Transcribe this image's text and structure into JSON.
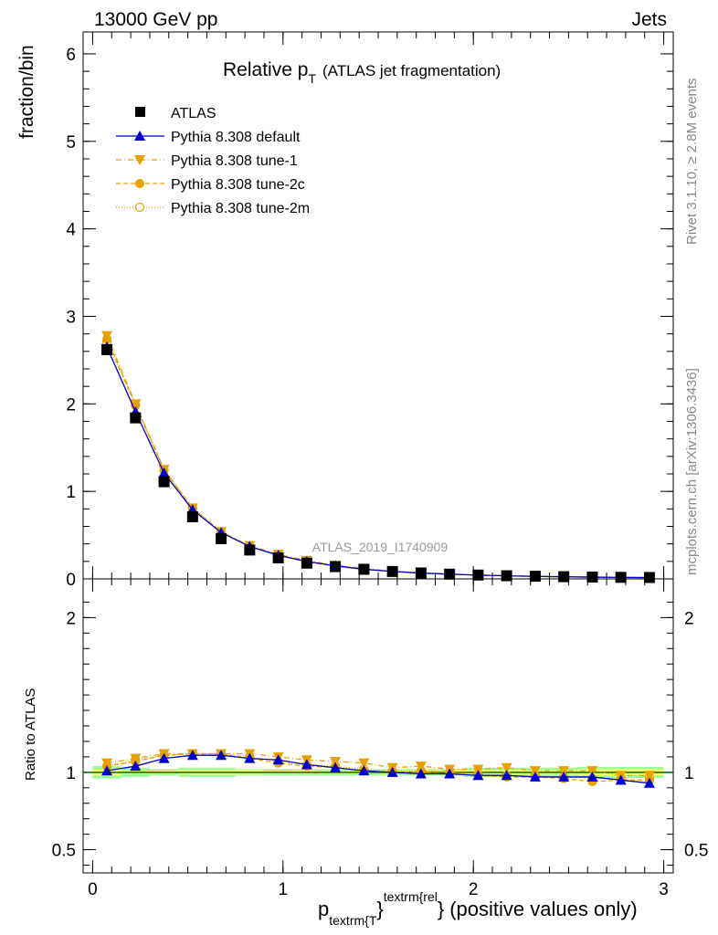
{
  "header": {
    "left": "13000 GeV pp",
    "right": "Jets"
  },
  "title": {
    "main": "Relative p",
    "sub": "T",
    "rest": "(ATLAS jet fragmentation)"
  },
  "side_labels": {
    "rivet": "Rivet 3.1.10, ≥ 2.8M events",
    "mcplots": "mcplots.cern.ch [arXiv:1306.3436]"
  },
  "watermark": "ATLAS_2019_I1740909",
  "y_label_top": "fraction/bin",
  "y_label_bottom": "Ratio to ATLAS",
  "x_label": {
    "p": "p",
    "sub": "textrm{T",
    "brace1": "}",
    "sup": "textrm{rel",
    "brace2": "}",
    "rest": "(positive values only)"
  },
  "legend": [
    {
      "label": "ATLAS"
    },
    {
      "label": "Pythia 8.308 default"
    },
    {
      "label": "Pythia 8.308 tune-1"
    },
    {
      "label": "Pythia 8.308 tune-2c"
    },
    {
      "label": "Pythia 8.308 tune-2m"
    }
  ],
  "colors": {
    "data": "#000000",
    "default": "#0000cc",
    "tunes": "#e8a000",
    "band_inner": "#ffff66",
    "band_outer": "#99ff99",
    "ref_line": "#006600"
  },
  "chart_data": [
    {
      "type": "line",
      "panel": "main",
      "xlim": [
        -0.05,
        3.05
      ],
      "ylim": [
        0,
        6.25
      ],
      "xticks": [
        "0",
        "1",
        "2",
        "3"
      ],
      "yticks": [
        "0",
        "1",
        "2",
        "3",
        "4",
        "5",
        "6"
      ],
      "x": [
        0.075,
        0.225,
        0.375,
        0.525,
        0.675,
        0.825,
        0.975,
        1.125,
        1.275,
        1.425,
        1.575,
        1.725,
        1.875,
        2.025,
        2.175,
        2.325,
        2.475,
        2.625,
        2.775,
        2.925
      ],
      "series": [
        {
          "name": "ATLAS",
          "marker": "square",
          "values": [
            2.62,
            1.84,
            1.11,
            0.71,
            0.46,
            0.33,
            0.24,
            0.18,
            0.14,
            0.11,
            0.085,
            0.068,
            0.054,
            0.044,
            0.036,
            0.03,
            0.025,
            0.021,
            0.018,
            0.016
          ]
        },
        {
          "name": "Pythia 8.308 default",
          "marker": "triangle-up",
          "values": [
            2.65,
            1.91,
            1.21,
            0.79,
            0.53,
            0.37,
            0.27,
            0.2,
            0.15,
            0.11,
            0.085,
            0.066,
            0.054,
            0.043,
            0.035,
            0.029,
            0.024,
            0.02,
            0.017,
            0.015
          ]
        },
        {
          "name": "Pythia 8.308 tune-1",
          "marker": "triangle-down",
          "values": [
            2.78,
            2.0,
            1.25,
            0.81,
            0.54,
            0.38,
            0.28,
            0.21,
            0.155,
            0.12,
            0.087,
            0.069,
            0.056,
            0.045,
            0.037,
            0.03,
            0.025,
            0.021,
            0.018,
            0.016
          ]
        },
        {
          "name": "Pythia 8.308 tune-2c",
          "marker": "circle",
          "values": [
            2.74,
            1.99,
            1.25,
            0.81,
            0.54,
            0.37,
            0.27,
            0.19,
            0.145,
            0.11,
            0.085,
            0.068,
            0.053,
            0.043,
            0.035,
            0.029,
            0.024,
            0.02,
            0.017,
            0.015
          ]
        },
        {
          "name": "Pythia 8.308 tune-2m",
          "marker": "open-circle",
          "values": [
            2.71,
            1.98,
            1.24,
            0.8,
            0.53,
            0.37,
            0.27,
            0.19,
            0.145,
            0.11,
            0.086,
            0.068,
            0.054,
            0.044,
            0.036,
            0.029,
            0.024,
            0.02,
            0.017,
            0.015
          ]
        }
      ]
    },
    {
      "type": "line",
      "panel": "ratio",
      "xlim": [
        -0.05,
        3.05
      ],
      "ylim": [
        0.35,
        2.25
      ],
      "xticks": [
        "0",
        "1",
        "2",
        "3"
      ],
      "yticks": [
        "0.5",
        "1",
        "2"
      ],
      "x": [
        0.075,
        0.225,
        0.375,
        0.525,
        0.675,
        0.825,
        0.975,
        1.125,
        1.275,
        1.425,
        1.575,
        1.725,
        1.875,
        2.025,
        2.175,
        2.325,
        2.475,
        2.625,
        2.775,
        2.925
      ],
      "band": {
        "inner": [
          0.02,
          0.01,
          0.01,
          0.015,
          0.015,
          0.015,
          0.01,
          0.01,
          0.01,
          0.01,
          0.01,
          0.01,
          0.01,
          0.015,
          0.015,
          0.015,
          0.015,
          0.02,
          0.02,
          0.02
        ],
        "outer": [
          0.04,
          0.03,
          0.02,
          0.03,
          0.03,
          0.02,
          0.02,
          0.02,
          0.02,
          0.02,
          0.02,
          0.02,
          0.02,
          0.03,
          0.03,
          0.03,
          0.03,
          0.035,
          0.035,
          0.035
        ]
      },
      "series": [
        {
          "name": "Pythia 8.308 default",
          "marker": "triangle-up",
          "values": [
            1.01,
            1.04,
            1.09,
            1.11,
            1.11,
            1.09,
            1.08,
            1.05,
            1.03,
            1.01,
            1.0,
            0.99,
            0.99,
            0.98,
            0.98,
            0.97,
            0.97,
            0.97,
            0.95,
            0.93
          ]
        },
        {
          "name": "Pythia 8.308 tune-1",
          "marker": "triangle-down",
          "values": [
            1.06,
            1.09,
            1.12,
            1.12,
            1.12,
            1.12,
            1.1,
            1.08,
            1.07,
            1.06,
            1.03,
            1.04,
            1.02,
            1.02,
            1.03,
            1.01,
            1.01,
            1.01,
            0.98,
            0.98
          ]
        },
        {
          "name": "Pythia 8.308 tune-2c",
          "marker": "circle",
          "values": [
            1.04,
            1.07,
            1.11,
            1.12,
            1.12,
            1.09,
            1.06,
            1.04,
            1.03,
            1.01,
            1.0,
            1.0,
            0.99,
            0.98,
            0.97,
            0.97,
            0.96,
            0.94,
            0.95,
            0.95
          ]
        },
        {
          "name": "Pythia 8.308 tune-2m",
          "marker": "open-circle",
          "values": [
            1.04,
            1.08,
            1.11,
            1.12,
            1.12,
            1.1,
            1.07,
            1.05,
            1.04,
            1.02,
            1.01,
            1.01,
            1.0,
            0.99,
            0.98,
            0.98,
            0.97,
            0.96,
            0.96,
            0.97
          ]
        }
      ]
    }
  ]
}
